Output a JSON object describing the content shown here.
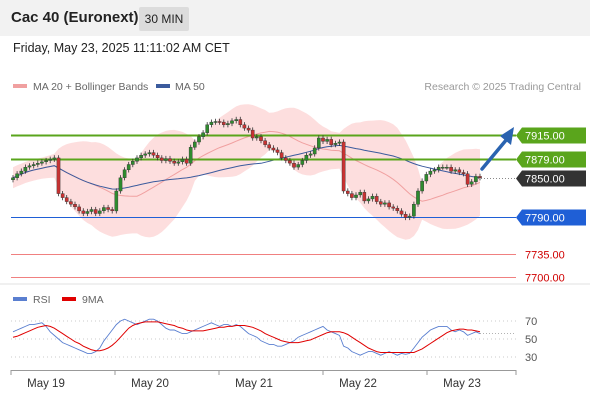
{
  "header": {
    "title": "Cac 40 (Euronext)",
    "timeframe": "30 MIN"
  },
  "timestamp": "Friday, May 23, 2025 11:11:02 AM CET",
  "legend": {
    "ma20": "MA 20 + Bollinger Bands",
    "ma50": "MA 50",
    "credit": "Research © 2025 Trading Central"
  },
  "rsi_legend": {
    "rsi": "RSI",
    "ma": "9MA"
  },
  "colors": {
    "green": "#5aa51c",
    "blue": "#1f5fd6",
    "red": "#e06060",
    "dark": "#333333",
    "band": "#fdd6d6",
    "ma20": "#f0a0a0",
    "ma50": "#3b5b9d",
    "candle_up": "#2e8b2e",
    "candle_down": "#c83232",
    "arrow": "#2a63b0"
  },
  "chart_data": {
    "type": "candlestick",
    "y_range": [
      7688,
      7975
    ],
    "levels": [
      {
        "value": 7915.0,
        "label": "7915.00",
        "kind": "resistance"
      },
      {
        "value": 7879.0,
        "label": "7879.00",
        "kind": "resistance"
      },
      {
        "value": 7850.0,
        "label": "7850.00",
        "kind": "last"
      },
      {
        "value": 7790.0,
        "label": "7790.00",
        "kind": "pivot"
      },
      {
        "value": 7735.0,
        "label": "7735.00",
        "kind": "support"
      },
      {
        "value": 7700.0,
        "label": "7700.00",
        "kind": "support"
      }
    ],
    "x_labels": [
      "May 19",
      "May 20",
      "May 21",
      "May 22",
      "May 23"
    ],
    "closes": [
      7850,
      7856,
      7860,
      7866,
      7868,
      7870,
      7872,
      7874,
      7876,
      7878,
      7880,
      7826,
      7820,
      7814,
      7810,
      7806,
      7800,
      7796,
      7799,
      7802,
      7796,
      7800,
      7805,
      7802,
      7800,
      7830,
      7850,
      7862,
      7870,
      7875,
      7880,
      7884,
      7886,
      7888,
      7884,
      7880,
      7876,
      7879,
      7875,
      7872,
      7874,
      7878,
      7872,
      7896,
      7904,
      7912,
      7918,
      7930,
      7934,
      7935,
      7934,
      7930,
      7932,
      7936,
      7938,
      7930,
      7925,
      7922,
      7910,
      7912,
      7906,
      7900,
      7895,
      7892,
      7888,
      7880,
      7876,
      7872,
      7866,
      7870,
      7876,
      7884,
      7886,
      7895,
      7910,
      7905,
      7908,
      7900,
      7902,
      7904,
      7830,
      7826,
      7820,
      7824,
      7828,
      7815,
      7818,
      7822,
      7814,
      7810,
      7812,
      7806,
      7804,
      7800,
      7795,
      7790,
      7792,
      7810,
      7830,
      7845,
      7855,
      7860,
      7862,
      7866,
      7866,
      7866,
      7860,
      7862,
      7858,
      7856,
      7840,
      7844,
      7852,
      7850
    ],
    "rsi": {
      "y_range": [
        20,
        80
      ],
      "ticks": [
        70,
        50,
        30
      ],
      "values": [
        58,
        60,
        62,
        64,
        66,
        66,
        67,
        68,
        64,
        58,
        54,
        50,
        46,
        44,
        42,
        40,
        38,
        36,
        34,
        34,
        36,
        40,
        48,
        54,
        60,
        66,
        70,
        72,
        70,
        68,
        66,
        68,
        70,
        72,
        72,
        70,
        66,
        62,
        60,
        60,
        58,
        56,
        56,
        58,
        60,
        62,
        64,
        66,
        68,
        66,
        64,
        66,
        66,
        64,
        66,
        64,
        60,
        56,
        54,
        52,
        48,
        46,
        44,
        44,
        42,
        42,
        44,
        46,
        48,
        52,
        54,
        56,
        58,
        60,
        62,
        64,
        60,
        58,
        56,
        54,
        42,
        40,
        36,
        34,
        32,
        34,
        36,
        36,
        34,
        32,
        34,
        36,
        34,
        32,
        34,
        33,
        34,
        40,
        46,
        52,
        56,
        60,
        62,
        64,
        64,
        64,
        60,
        58,
        60,
        58,
        54,
        56,
        58,
        56
      ],
      "ma9": [
        52,
        53,
        55,
        57,
        59,
        61,
        63,
        64,
        65,
        64,
        62,
        59,
        56,
        53,
        50,
        47,
        45,
        42,
        40,
        38,
        37,
        37,
        38,
        40,
        43,
        47,
        52,
        57,
        62,
        65,
        67,
        68,
        69,
        69,
        69,
        69,
        68,
        67,
        66,
        65,
        63,
        62,
        60,
        59,
        59,
        59,
        59,
        60,
        61,
        62,
        63,
        63,
        64,
        64,
        65,
        65,
        65,
        64,
        63,
        61,
        59,
        56,
        54,
        52,
        50,
        48,
        47,
        46,
        46,
        46,
        47,
        48,
        49,
        51,
        53,
        55,
        57,
        58,
        58,
        58,
        57,
        55,
        52,
        49,
        46,
        43,
        40,
        38,
        36,
        35,
        35,
        35,
        35,
        35,
        35,
        35,
        35,
        35,
        37,
        39,
        42,
        45,
        48,
        51,
        54,
        57,
        59,
        60,
        61,
        61,
        60,
        60,
        59,
        58
      ]
    }
  }
}
